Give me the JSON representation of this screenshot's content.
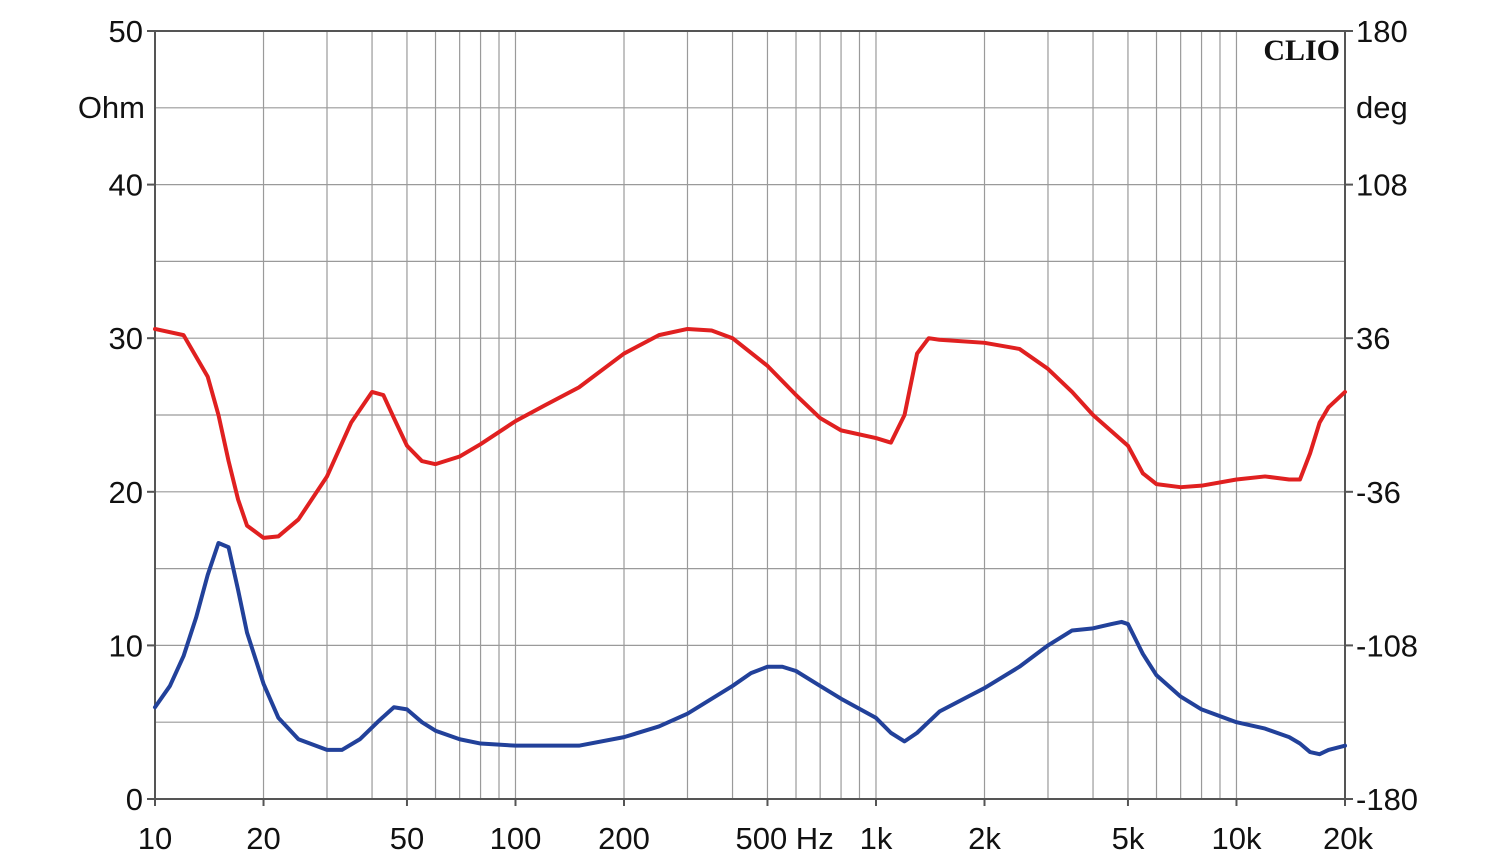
{
  "chart_data": {
    "type": "line",
    "watermark": "CLIO",
    "x_axis": {
      "scale": "log",
      "range": [
        10,
        20000
      ],
      "tick_values": [
        10,
        20,
        50,
        100,
        200,
        500,
        1000,
        2000,
        5000,
        10000,
        20000
      ],
      "tick_labels": [
        "10",
        "20",
        "50",
        "100",
        "200",
        "500 Hz",
        "1k",
        "2k",
        "5k",
        "10k",
        "20k"
      ]
    },
    "y_left": {
      "unit_label": "Ohm",
      "range": [
        0,
        50
      ],
      "tick_values": [
        0,
        10,
        20,
        30,
        40,
        50
      ],
      "tick_labels": [
        "0",
        "10",
        "20",
        "30",
        "40",
        "50"
      ]
    },
    "y_right": {
      "unit_label": "deg",
      "range": [
        -180,
        180
      ],
      "tick_values": [
        -180,
        -108,
        -36,
        36,
        108,
        180
      ],
      "tick_labels": [
        "-180",
        "-108",
        "-36",
        "36",
        "108",
        "180"
      ]
    },
    "grid": true,
    "series": [
      {
        "color": "#e02020",
        "axis": "left",
        "points": [
          [
            10,
            30.6
          ],
          [
            12,
            30.2
          ],
          [
            14,
            27.5
          ],
          [
            15,
            25
          ],
          [
            16,
            22
          ],
          [
            17,
            19.5
          ],
          [
            18,
            17.8
          ],
          [
            20,
            17
          ],
          [
            22,
            17.1
          ],
          [
            25,
            18.2
          ],
          [
            30,
            21
          ],
          [
            35,
            24.5
          ],
          [
            40,
            26.5
          ],
          [
            43,
            26.3
          ],
          [
            46,
            24.8
          ],
          [
            50,
            23
          ],
          [
            55,
            22
          ],
          [
            60,
            21.8
          ],
          [
            70,
            22.3
          ],
          [
            80,
            23.1
          ],
          [
            100,
            24.6
          ],
          [
            120,
            25.6
          ],
          [
            150,
            26.8
          ],
          [
            200,
            29
          ],
          [
            250,
            30.2
          ],
          [
            300,
            30.6
          ],
          [
            350,
            30.5
          ],
          [
            400,
            30
          ],
          [
            500,
            28.2
          ],
          [
            600,
            26.3
          ],
          [
            700,
            24.8
          ],
          [
            800,
            24
          ],
          [
            1000,
            23.5
          ],
          [
            1100,
            23.2
          ],
          [
            1200,
            25
          ],
          [
            1300,
            29
          ],
          [
            1400,
            30
          ],
          [
            1500,
            29.9
          ],
          [
            2000,
            29.7
          ],
          [
            2500,
            29.3
          ],
          [
            3000,
            28
          ],
          [
            3500,
            26.5
          ],
          [
            4000,
            25
          ],
          [
            5000,
            23
          ],
          [
            5500,
            21.2
          ],
          [
            6000,
            20.5
          ],
          [
            7000,
            20.3
          ],
          [
            8000,
            20.4
          ],
          [
            10000,
            20.8
          ],
          [
            12000,
            21
          ],
          [
            14000,
            20.8
          ],
          [
            15000,
            20.8
          ],
          [
            16000,
            22.5
          ],
          [
            17000,
            24.5
          ],
          [
            18000,
            25.5
          ],
          [
            20000,
            26.5
          ]
        ]
      },
      {
        "color": "#22419a",
        "axis": "right",
        "points": [
          [
            10,
            -137
          ],
          [
            11,
            -127
          ],
          [
            12,
            -113
          ],
          [
            13,
            -95
          ],
          [
            14,
            -75
          ],
          [
            15,
            -60
          ],
          [
            16,
            -62
          ],
          [
            17,
            -82
          ],
          [
            18,
            -102
          ],
          [
            20,
            -126
          ],
          [
            22,
            -142
          ],
          [
            25,
            -152
          ],
          [
            30,
            -157
          ],
          [
            33,
            -157
          ],
          [
            37,
            -152
          ],
          [
            42,
            -143
          ],
          [
            46,
            -137
          ],
          [
            50,
            -138
          ],
          [
            55,
            -144
          ],
          [
            60,
            -148
          ],
          [
            70,
            -152
          ],
          [
            80,
            -154
          ],
          [
            100,
            -155
          ],
          [
            120,
            -155
          ],
          [
            150,
            -155
          ],
          [
            200,
            -151
          ],
          [
            250,
            -146
          ],
          [
            300,
            -140
          ],
          [
            400,
            -127
          ],
          [
            450,
            -121
          ],
          [
            500,
            -118
          ],
          [
            550,
            -118
          ],
          [
            600,
            -120
          ],
          [
            700,
            -127
          ],
          [
            800,
            -133
          ],
          [
            1000,
            -142
          ],
          [
            1100,
            -149
          ],
          [
            1200,
            -153
          ],
          [
            1300,
            -149
          ],
          [
            1500,
            -139
          ],
          [
            1800,
            -132
          ],
          [
            2000,
            -128
          ],
          [
            2500,
            -118
          ],
          [
            3000,
            -108
          ],
          [
            3500,
            -101
          ],
          [
            4000,
            -100
          ],
          [
            4500,
            -98
          ],
          [
            4800,
            -97
          ],
          [
            5000,
            -98
          ],
          [
            5500,
            -112
          ],
          [
            6000,
            -122
          ],
          [
            7000,
            -132
          ],
          [
            8000,
            -138
          ],
          [
            10000,
            -144
          ],
          [
            12000,
            -147
          ],
          [
            14000,
            -151
          ],
          [
            15000,
            -154
          ],
          [
            16000,
            -158
          ],
          [
            17000,
            -159
          ],
          [
            18000,
            -157
          ],
          [
            20000,
            -155
          ]
        ]
      }
    ]
  }
}
